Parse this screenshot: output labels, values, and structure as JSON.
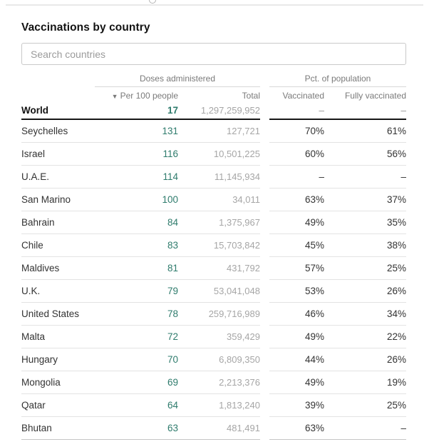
{
  "title": "Vaccinations by country",
  "search": {
    "placeholder": "Search countries"
  },
  "colors": {
    "accent_green": "#2e7b6c",
    "title_text": "#121212",
    "muted_number": "#a6a6a6",
    "header_text": "#7a7a7a",
    "world_rule": "#161616",
    "row_divider": "#e3e3e3"
  },
  "table": {
    "groups": {
      "doses": "Doses administered",
      "pct": "Pct. of population"
    },
    "columns": {
      "per100": "Per 100 people",
      "total": "Total",
      "vaccinated": "Vaccinated",
      "fully_vaccinated": "Fully vaccinated"
    },
    "sort": {
      "column": "Per 100 people",
      "direction": "desc",
      "icon": "▼"
    },
    "world": {
      "country": "World",
      "per100": "17",
      "total": "1,297,259,952",
      "vaccinated": "–",
      "fully_vaccinated": "–"
    },
    "rows": [
      {
        "country": "Seychelles",
        "per100": "131",
        "total": "127,721",
        "vaccinated": "70%",
        "fully_vaccinated": "61%"
      },
      {
        "country": "Israel",
        "per100": "116",
        "total": "10,501,225",
        "vaccinated": "60%",
        "fully_vaccinated": "56%"
      },
      {
        "country": "U.A.E.",
        "per100": "114",
        "total": "11,145,934",
        "vaccinated": "–",
        "fully_vaccinated": "–"
      },
      {
        "country": "San Marino",
        "per100": "100",
        "total": "34,011",
        "vaccinated": "63%",
        "fully_vaccinated": "37%"
      },
      {
        "country": "Bahrain",
        "per100": "84",
        "total": "1,375,967",
        "vaccinated": "49%",
        "fully_vaccinated": "35%"
      },
      {
        "country": "Chile",
        "per100": "83",
        "total": "15,703,842",
        "vaccinated": "45%",
        "fully_vaccinated": "38%"
      },
      {
        "country": "Maldives",
        "per100": "81",
        "total": "431,792",
        "vaccinated": "57%",
        "fully_vaccinated": "25%"
      },
      {
        "country": "U.K.",
        "per100": "79",
        "total": "53,041,048",
        "vaccinated": "53%",
        "fully_vaccinated": "26%"
      },
      {
        "country": "United States",
        "per100": "78",
        "total": "259,716,989",
        "vaccinated": "46%",
        "fully_vaccinated": "34%"
      },
      {
        "country": "Malta",
        "per100": "72",
        "total": "359,429",
        "vaccinated": "49%",
        "fully_vaccinated": "22%"
      },
      {
        "country": "Hungary",
        "per100": "70",
        "total": "6,809,350",
        "vaccinated": "44%",
        "fully_vaccinated": "26%"
      },
      {
        "country": "Mongolia",
        "per100": "69",
        "total": "2,213,376",
        "vaccinated": "49%",
        "fully_vaccinated": "19%"
      },
      {
        "country": "Qatar",
        "per100": "64",
        "total": "1,813,240",
        "vaccinated": "39%",
        "fully_vaccinated": "25%"
      },
      {
        "country": "Bhutan",
        "per100": "63",
        "total": "481,491",
        "vaccinated": "63%",
        "fully_vaccinated": "–"
      }
    ]
  }
}
